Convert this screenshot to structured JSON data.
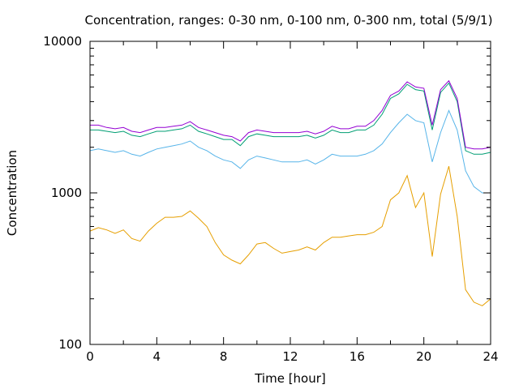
{
  "chart_data": {
    "type": "line",
    "title": "Concentration, ranges: 0-30 nm, 0-100 nm, 0-300 nm, total (5/9/1)",
    "xlabel": "Time [hour]",
    "ylabel": "Concentration",
    "xlim": [
      0,
      24
    ],
    "ylim": [
      100,
      10000
    ],
    "yscale": "log",
    "grid": false,
    "legend": "none",
    "x_ticks": [
      0,
      4,
      8,
      12,
      16,
      20,
      24
    ],
    "x_tick_labels": [
      "0",
      "4",
      "8",
      "12",
      "16",
      "20",
      "24"
    ],
    "y_ticks": [
      100,
      1000,
      10000
    ],
    "y_tick_labels": [
      "100",
      "1000",
      "10000"
    ],
    "x": [
      0,
      0.5,
      1,
      1.5,
      2,
      2.5,
      3,
      3.5,
      4,
      4.5,
      5,
      5.5,
      6,
      6.5,
      7,
      7.5,
      8,
      8.5,
      9,
      9.5,
      10,
      10.5,
      11,
      11.5,
      12,
      12.5,
      13,
      13.5,
      14,
      14.5,
      15,
      15.5,
      16,
      16.5,
      17,
      17.5,
      18,
      18.5,
      19,
      19.5,
      20,
      20.5,
      21,
      21.5,
      22,
      22.5,
      23,
      23.5,
      24
    ],
    "series": [
      {
        "color": "#e69f00",
        "values": [
          560,
          590,
          570,
          540,
          570,
          500,
          480,
          560,
          630,
          690,
          690,
          700,
          760,
          680,
          600,
          470,
          390,
          360,
          340,
          390,
          460,
          470,
          430,
          400,
          410,
          420,
          440,
          420,
          470,
          510,
          510,
          520,
          530,
          530,
          550,
          600,
          900,
          1000,
          1300,
          800,
          1000,
          380,
          980,
          1500,
          700,
          230,
          190,
          180,
          200
        ]
      },
      {
        "color": "#56b4e9",
        "values": [
          1900,
          1950,
          1900,
          1850,
          1900,
          1800,
          1750,
          1850,
          1950,
          2000,
          2050,
          2100,
          2200,
          2000,
          1900,
          1750,
          1650,
          1600,
          1450,
          1650,
          1750,
          1700,
          1650,
          1600,
          1600,
          1600,
          1650,
          1550,
          1650,
          1800,
          1750,
          1750,
          1750,
          1800,
          1900,
          2100,
          2500,
          2900,
          3300,
          3000,
          2900,
          1600,
          2500,
          3500,
          2600,
          1400,
          1100,
          1000,
          1000
        ]
      },
      {
        "color": "#009e73",
        "values": [
          2600,
          2600,
          2550,
          2500,
          2550,
          2400,
          2350,
          2450,
          2550,
          2550,
          2600,
          2650,
          2800,
          2550,
          2450,
          2350,
          2250,
          2250,
          2050,
          2350,
          2450,
          2400,
          2350,
          2350,
          2350,
          2350,
          2400,
          2300,
          2400,
          2600,
          2500,
          2500,
          2600,
          2600,
          2800,
          3300,
          4200,
          4500,
          5200,
          4800,
          4700,
          2600,
          4600,
          5300,
          4000,
          1900,
          1800,
          1800,
          1850
        ]
      },
      {
        "color": "#9400d3",
        "values": [
          2800,
          2800,
          2700,
          2650,
          2700,
          2550,
          2500,
          2600,
          2700,
          2700,
          2750,
          2800,
          2950,
          2700,
          2600,
          2500,
          2400,
          2350,
          2200,
          2500,
          2600,
          2550,
          2500,
          2500,
          2500,
          2500,
          2550,
          2450,
          2550,
          2750,
          2650,
          2650,
          2750,
          2750,
          3000,
          3500,
          4400,
          4700,
          5400,
          5000,
          4900,
          2800,
          4800,
          5500,
          4200,
          2000,
          1950,
          1950,
          2000
        ]
      }
    ]
  }
}
